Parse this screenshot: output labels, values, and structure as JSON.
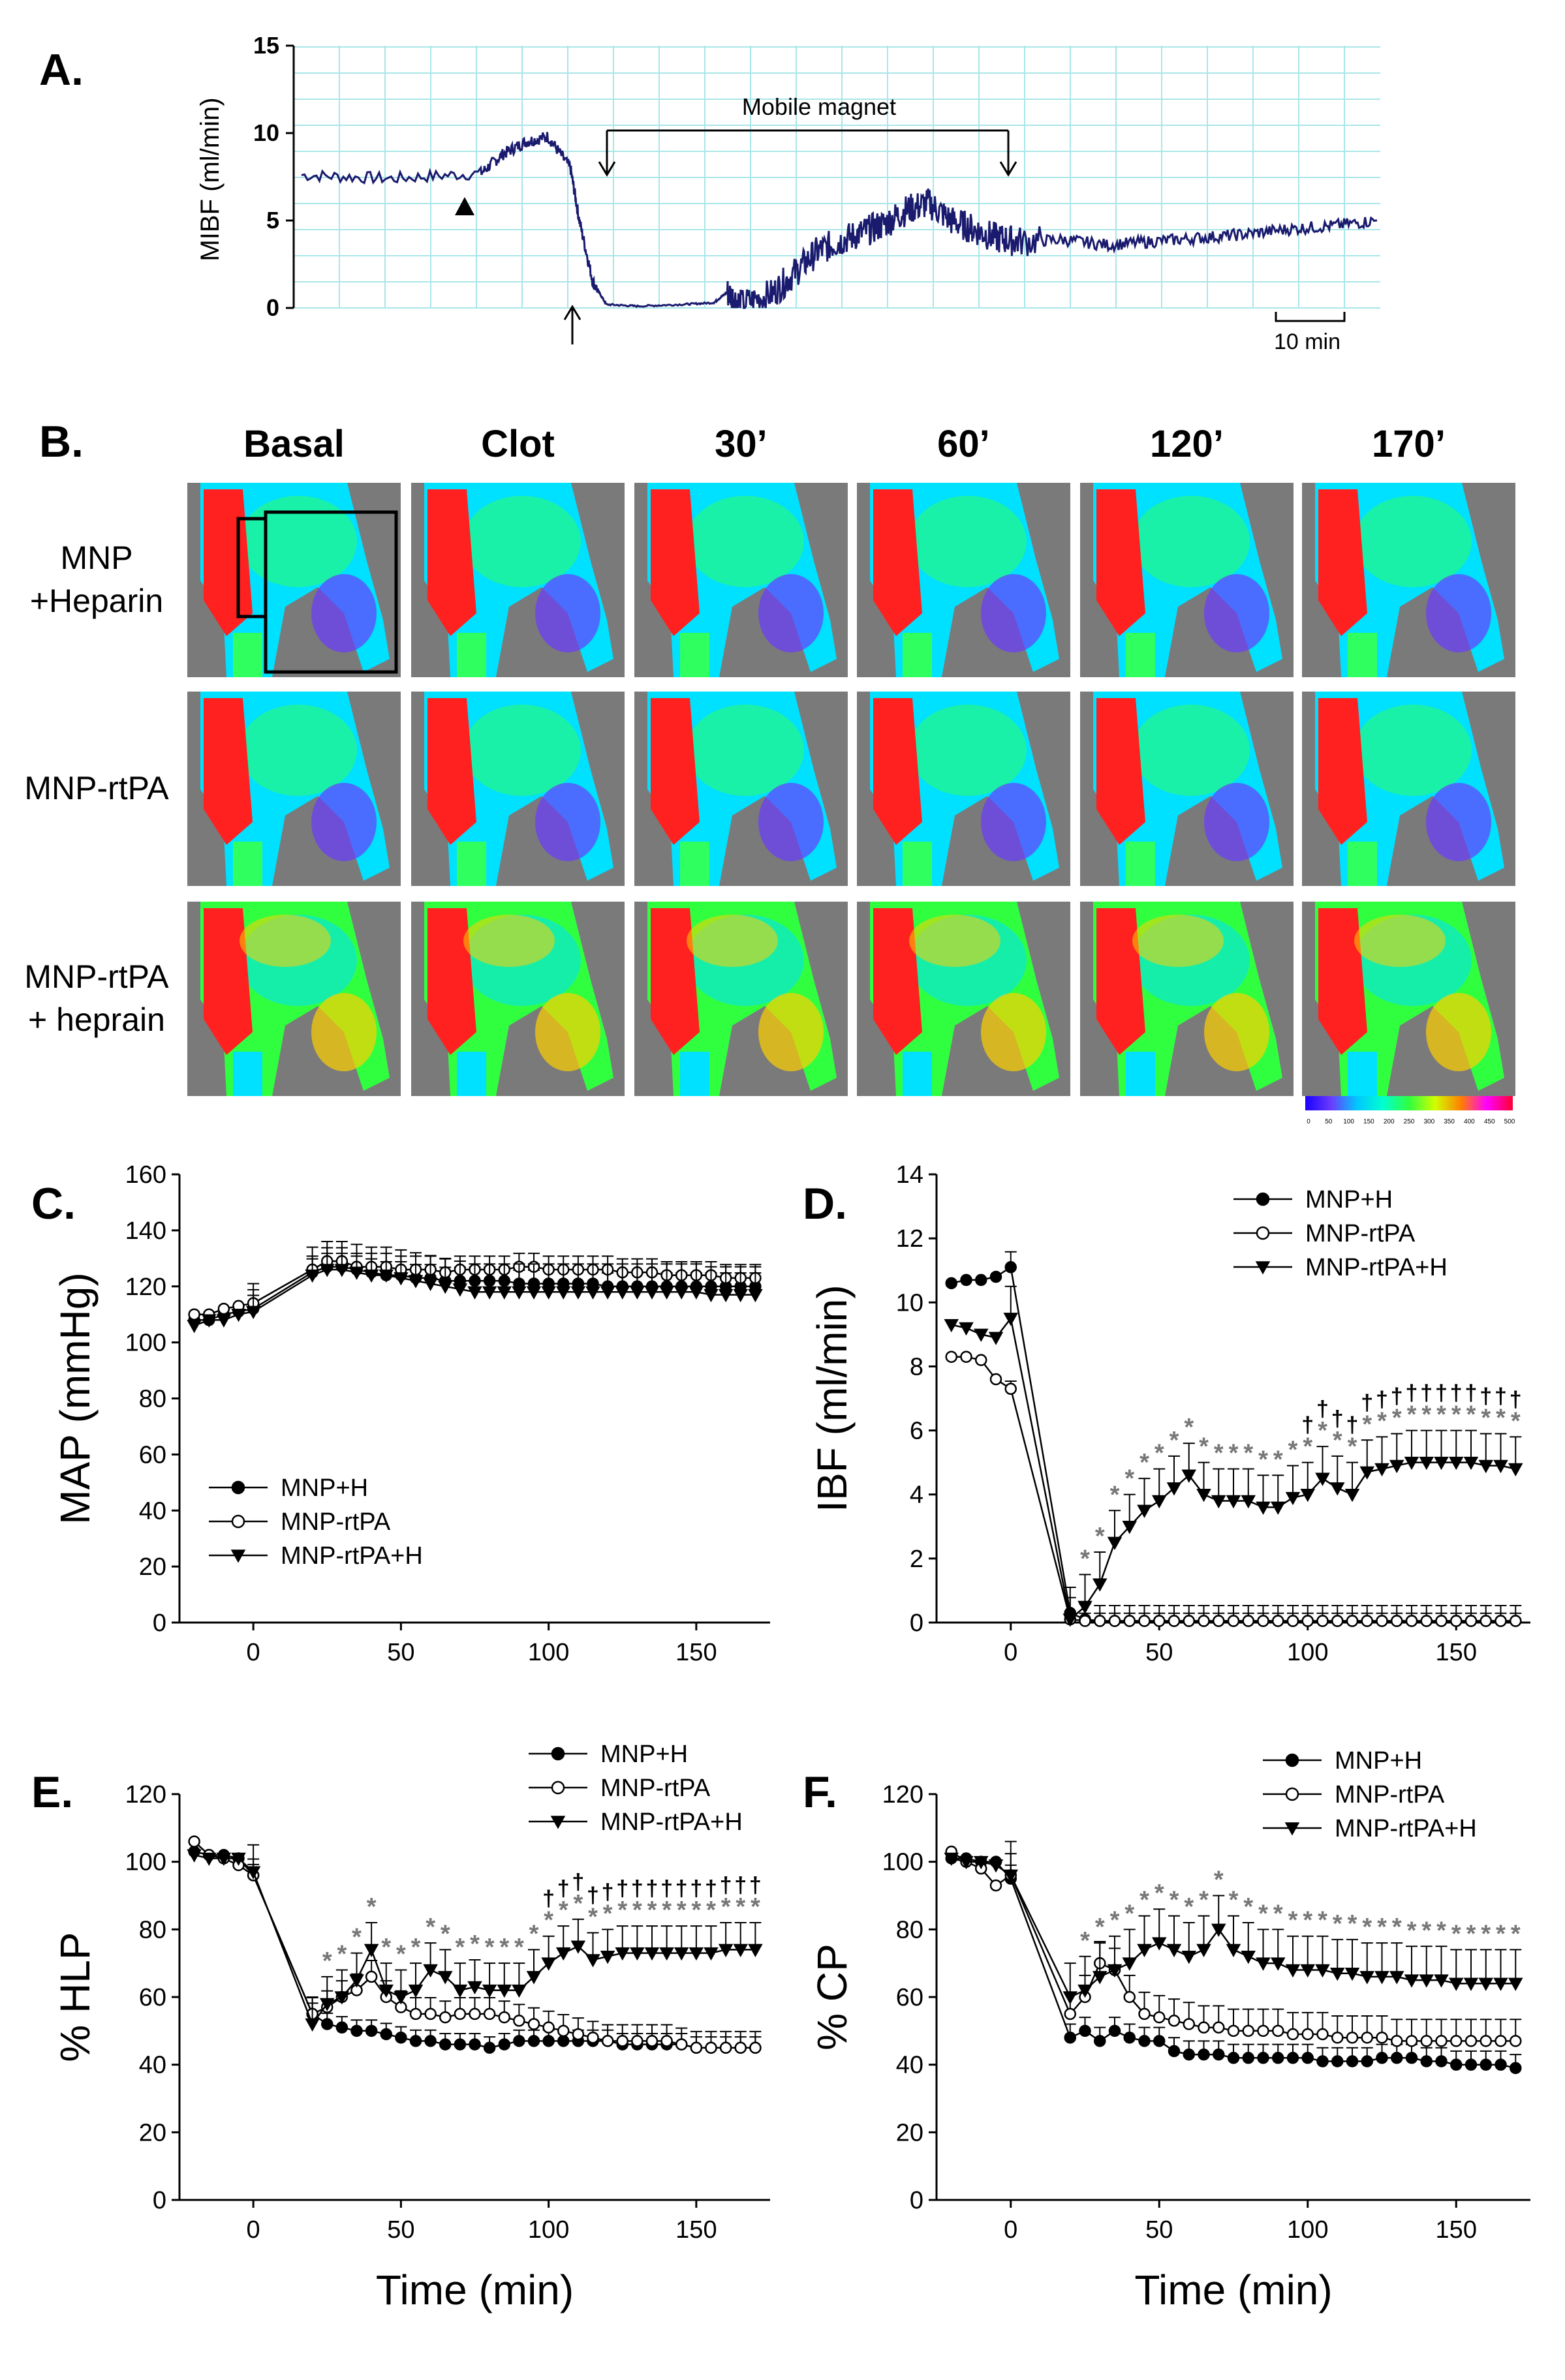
{
  "panel_labels": {
    "A": "A.",
    "B": "B.",
    "C": "C.",
    "D": "D.",
    "E": "E.",
    "F": "F."
  },
  "colors": {
    "trace": "#1a1a6e",
    "grid": "#a9e6e8",
    "image_bg": "#7a7a7a",
    "series_filled": "#000000",
    "series_open": "#ffffff",
    "significance": "#777777"
  },
  "panel_b": {
    "column_titles": [
      "Basal",
      "Clot",
      "30’",
      "60’",
      "120’",
      "170’"
    ],
    "row_labels": [
      [
        "MNP",
        "+Heparin"
      ],
      [
        "MNP-rtPA"
      ],
      [
        "MNP-rtPA",
        "+ heprain"
      ]
    ],
    "colorbar_ticks": [
      "0",
      "50",
      "100",
      "150",
      "200",
      "250",
      "300",
      "350",
      "400",
      "450",
      "500"
    ]
  },
  "chart_data": [
    {
      "id": "A",
      "type": "line",
      "title": "",
      "xlabel": "",
      "ylabel": "MIBF (ml/min)",
      "ylim": [
        0,
        15
      ],
      "yticks": [
        "0",
        "5",
        "10",
        "15"
      ],
      "grid": true,
      "annotations": {
        "magnet_label": "Mobile magnet",
        "scale_bar": "10 min"
      },
      "trace": {
        "x_minutes": [
          0,
          20,
          40,
          45,
          50,
          55,
          60,
          62,
          65,
          68,
          75,
          85,
          92,
          95,
          98,
          105,
          110,
          115,
          120,
          125,
          130,
          135,
          140,
          145,
          150,
          155,
          160,
          170,
          180,
          190,
          200,
          210,
          220,
          230,
          240
        ],
        "y": [
          7.6,
          7.4,
          7.7,
          8.8,
          9.5,
          9.8,
          8.0,
          5.0,
          1.5,
          0.2,
          0.1,
          0.2,
          0.3,
          0.9,
          0.2,
          0.8,
          2.0,
          3.2,
          3.8,
          4.3,
          4.8,
          5.6,
          6.0,
          5.0,
          4.5,
          4.0,
          3.8,
          3.9,
          3.6,
          3.8,
          4.0,
          4.2,
          4.5,
          4.7,
          5.0
        ]
      }
    },
    {
      "id": "C",
      "type": "line",
      "xlabel": "",
      "ylabel": "MAP (mmHg)",
      "xlim": [
        -25,
        175
      ],
      "ylim": [
        0,
        160
      ],
      "xticks": [
        "0",
        "50",
        "100",
        "150"
      ],
      "yticks": [
        "0",
        "20",
        "40",
        "60",
        "80",
        "100",
        "120",
        "140",
        "160"
      ],
      "legend_position": "bottom-left",
      "x": [
        -20,
        -15,
        -10,
        -5,
        0,
        20,
        25,
        30,
        35,
        40,
        45,
        50,
        55,
        60,
        65,
        70,
        75,
        80,
        85,
        90,
        95,
        100,
        105,
        110,
        115,
        120,
        125,
        130,
        135,
        140,
        145,
        150,
        155,
        160,
        165,
        170
      ],
      "series": [
        {
          "name": "MNP+H",
          "values": [
            108,
            108,
            110,
            111,
            112,
            125,
            127,
            127,
            126,
            125,
            124,
            124,
            123,
            123,
            122,
            122,
            122,
            122,
            122,
            121,
            121,
            121,
            121,
            121,
            121,
            120,
            120,
            120,
            120,
            120,
            120,
            120,
            120,
            120,
            120,
            120
          ],
          "error": 6
        },
        {
          "name": "MNP-rtPA",
          "values": [
            110,
            110,
            112,
            113,
            114,
            126,
            129,
            129,
            127,
            127,
            127,
            126,
            126,
            126,
            125,
            126,
            126,
            126,
            126,
            127,
            127,
            126,
            126,
            126,
            126,
            126,
            125,
            125,
            125,
            124,
            124,
            124,
            124,
            123,
            123,
            123
          ],
          "error": 6
        },
        {
          "name": "MNP-rtPA+H",
          "values": [
            106,
            108,
            108,
            110,
            111,
            124,
            126,
            126,
            125,
            124,
            124,
            123,
            122,
            121,
            120,
            119,
            118,
            118,
            118,
            118,
            118,
            118,
            118,
            118,
            118,
            118,
            118,
            118,
            118,
            118,
            118,
            118,
            117,
            117,
            117,
            117
          ],
          "error": 10
        }
      ]
    },
    {
      "id": "D",
      "type": "line",
      "xlabel": "",
      "ylabel": "IBF (ml/min)",
      "xlim": [
        -25,
        175
      ],
      "ylim": [
        0,
        14
      ],
      "xticks": [
        "0",
        "50",
        "100",
        "150"
      ],
      "yticks": [
        "0",
        "2",
        "4",
        "6",
        "8",
        "10",
        "12",
        "14"
      ],
      "legend_position": "top-right",
      "x": [
        -20,
        -15,
        -10,
        -5,
        0,
        20,
        25,
        30,
        35,
        40,
        45,
        50,
        55,
        60,
        65,
        70,
        75,
        80,
        85,
        90,
        95,
        100,
        105,
        110,
        115,
        120,
        125,
        130,
        135,
        140,
        145,
        150,
        155,
        160,
        165,
        170
      ],
      "series": [
        {
          "name": "MNP+H",
          "values": [
            10.6,
            10.7,
            10.7,
            10.8,
            11.1,
            0.3,
            0.1,
            0.05,
            0.05,
            0.05,
            0.05,
            0.05,
            0.05,
            0.05,
            0.05,
            0.05,
            0.05,
            0.05,
            0.05,
            0.05,
            0.05,
            0.05,
            0.05,
            0.05,
            0.05,
            0.05,
            0.05,
            0.05,
            0.05,
            0.05,
            0.05,
            0.05,
            0.05,
            0.05,
            0.05,
            0.05
          ],
          "error": 0.6
        },
        {
          "name": "MNP-rtPA",
          "values": [
            8.3,
            8.3,
            8.2,
            7.6,
            7.3,
            0.1,
            0.05,
            0.05,
            0.05,
            0.05,
            0.05,
            0.05,
            0.05,
            0.05,
            0.05,
            0.05,
            0.05,
            0.05,
            0.05,
            0.05,
            0.05,
            0.05,
            0.05,
            0.05,
            0.05,
            0.05,
            0.05,
            0.05,
            0.05,
            0.05,
            0.05,
            0.05,
            0.05,
            0.05,
            0.05,
            0.05
          ],
          "error": 0.3
        },
        {
          "name": "MNP-rtPA+H",
          "values": [
            9.3,
            9.2,
            9.0,
            8.9,
            9.5,
            0.1,
            0.5,
            1.2,
            2.5,
            3.0,
            3.5,
            3.8,
            4.2,
            4.6,
            4.0,
            3.8,
            3.8,
            3.8,
            3.6,
            3.6,
            3.9,
            4.0,
            4.5,
            4.2,
            4.0,
            4.7,
            4.8,
            4.9,
            5.0,
            5.0,
            5.0,
            5.0,
            5.0,
            4.9,
            4.9,
            4.8
          ],
          "error": 1.0
        }
      ],
      "significance_markers": [
        "*",
        "†"
      ]
    },
    {
      "id": "E",
      "type": "line",
      "xlabel": "Time (min)",
      "ylabel": "% HLP",
      "xlim": [
        -25,
        175
      ],
      "ylim": [
        0,
        120
      ],
      "xticks": [
        "0",
        "50",
        "100",
        "150"
      ],
      "yticks": [
        "0",
        "20",
        "40",
        "60",
        "80",
        "100",
        "120"
      ],
      "legend_position": "top-right",
      "x": [
        -20,
        -15,
        -10,
        -5,
        0,
        20,
        25,
        30,
        35,
        40,
        45,
        50,
        55,
        60,
        65,
        70,
        75,
        80,
        85,
        90,
        95,
        100,
        105,
        110,
        115,
        120,
        125,
        130,
        135,
        140,
        145,
        150,
        155,
        160,
        165,
        170
      ],
      "series": [
        {
          "name": "MNP+H",
          "values": [
            103,
            102,
            102,
            101,
            96,
            55,
            52,
            51,
            50,
            50,
            49,
            48,
            47,
            47,
            46,
            46,
            46,
            45,
            46,
            47,
            47,
            47,
            47,
            47,
            47,
            47,
            46,
            46,
            46,
            46,
            46,
            45,
            45,
            45,
            45,
            45
          ],
          "error": 4
        },
        {
          "name": "MNP-rtPA",
          "values": [
            106,
            102,
            101,
            99,
            96,
            55,
            57,
            60,
            62,
            66,
            60,
            57,
            55,
            55,
            54,
            55,
            55,
            55,
            54,
            53,
            52,
            51,
            50,
            49,
            48,
            47,
            47,
            47,
            47,
            47,
            46,
            45,
            45,
            45,
            45,
            45
          ],
          "error": 6
        },
        {
          "name": "MNP-rtPA+H",
          "values": [
            102,
            101,
            101,
            101,
            97,
            52,
            58,
            60,
            65,
            74,
            62,
            60,
            62,
            68,
            66,
            62,
            63,
            62,
            62,
            62,
            66,
            70,
            73,
            75,
            71,
            72,
            73,
            73,
            73,
            73,
            73,
            73,
            73,
            74,
            74,
            74
          ],
          "error": 8
        }
      ],
      "significance_markers": [
        "*",
        "†"
      ]
    },
    {
      "id": "F",
      "type": "line",
      "xlabel": "Time (min)",
      "ylabel": "% CP",
      "xlim": [
        -25,
        175
      ],
      "ylim": [
        0,
        120
      ],
      "xticks": [
        "0",
        "50",
        "100",
        "150"
      ],
      "yticks": [
        "0",
        "20",
        "40",
        "60",
        "80",
        "100",
        "120"
      ],
      "legend_position": "top-right",
      "x": [
        -20,
        -15,
        -10,
        -5,
        0,
        20,
        25,
        30,
        35,
        40,
        45,
        50,
        55,
        60,
        65,
        70,
        75,
        80,
        85,
        90,
        95,
        100,
        105,
        110,
        115,
        120,
        125,
        130,
        135,
        140,
        145,
        150,
        155,
        160,
        165,
        170
      ],
      "series": [
        {
          "name": "MNP+H",
          "values": [
            101,
            101,
            100,
            100,
            95,
            48,
            50,
            47,
            50,
            48,
            47,
            47,
            44,
            43,
            43,
            43,
            42,
            42,
            42,
            42,
            42,
            42,
            41,
            41,
            41,
            41,
            42,
            42,
            42,
            41,
            41,
            40,
            40,
            40,
            40,
            39
          ],
          "error": 5
        },
        {
          "name": "MNP-rtPA",
          "values": [
            103,
            100,
            98,
            93,
            96,
            55,
            60,
            70,
            68,
            60,
            55,
            54,
            53,
            52,
            51,
            51,
            50,
            50,
            50,
            50,
            49,
            49,
            49,
            48,
            48,
            48,
            48,
            47,
            47,
            47,
            47,
            47,
            47,
            47,
            47,
            47
          ],
          "error": 8
        },
        {
          "name": "MNP-rtPA+H",
          "values": [
            101,
            100,
            100,
            99,
            96,
            60,
            62,
            66,
            68,
            70,
            74,
            76,
            74,
            72,
            74,
            80,
            74,
            72,
            70,
            70,
            68,
            68,
            68,
            67,
            67,
            66,
            66,
            66,
            65,
            65,
            65,
            64,
            64,
            64,
            64,
            64
          ],
          "error": 10
        }
      ],
      "significance_markers": [
        "*",
        "†"
      ]
    }
  ]
}
